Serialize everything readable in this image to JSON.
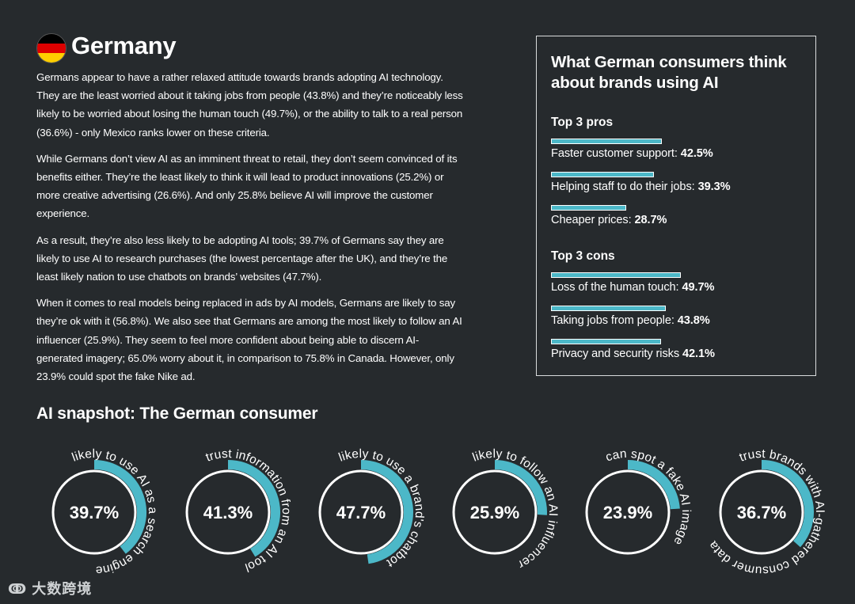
{
  "header": {
    "title": "Germany",
    "flag_colors": [
      "#000000",
      "#dd0000",
      "#ffce00"
    ]
  },
  "intro": {
    "paragraphs": [
      "Germans appear to have a rather relaxed attitude towards brands adopting AI technology. They are the least worried about it taking jobs from people (43.8%) and they’re noticeably less likely to be worried about losing the human touch (49.7%), or the ability to talk to a real person (36.6%) - only Mexico ranks lower on these criteria.",
      "While Germans don’t view AI as an imminent threat to retail, they don’t seem convinced of its benefits either. They’re the least likely to think it will lead to product innovations (25.2%) or more creative advertising (26.6%). And only 25.8% believe AI will improve the customer experience.",
      "As a result, they’re also less likely to be adopting AI tools; 39.7% of Germans say they are likely to use AI to research purchases (the lowest percentage after the UK), and they’re the least likely nation to use chatbots on brands’ websites (47.7%).",
      "When it comes to real models being replaced in ads by AI models, Germans are likely to say they’re ok with it (56.8%). We also see that Germans are among the most likely to follow an AI influencer (25.9%). They seem to feel more confident about being able to discern AI-generated imagery; 65.0% worry about it, in comparison to 75.8% in Canada. However, only 23.9% could spot the fake Nike ad."
    ]
  },
  "sidebar": {
    "title": "What German consumers think about brands using AI",
    "pros_heading": "Top 3 pros",
    "pros": [
      {
        "label": "Faster customer support:",
        "value": "42.5%",
        "pct": 42.5
      },
      {
        "label": "Helping staff to do their jobs:",
        "value": "39.3%",
        "pct": 39.3
      },
      {
        "label": "Cheaper prices:",
        "value": "28.7%",
        "pct": 28.7
      }
    ],
    "cons_heading": "Top 3 cons",
    "cons": [
      {
        "label": "Loss of the human touch:",
        "value": "49.7%",
        "pct": 49.7
      },
      {
        "label": "Taking jobs from people:",
        "value": "43.8%",
        "pct": 43.8
      },
      {
        "label": "Privacy and security risks",
        "value": "42.1%",
        "pct": 42.1
      }
    ],
    "bar_color": "#4cb8c8"
  },
  "snapshot": {
    "title": "AI snapshot: The German consumer",
    "accent": "#4cb8c8",
    "items": [
      {
        "value": "39.7%",
        "pct": 39.7,
        "caption": "likely to use AI as a search engine"
      },
      {
        "value": "41.3%",
        "pct": 41.3,
        "caption": "trust information from an AI tool"
      },
      {
        "value": "47.7%",
        "pct": 47.7,
        "caption": "likely to use a brand's chatbot"
      },
      {
        "value": "25.9%",
        "pct": 25.9,
        "caption": "likely to follow an AI influencer"
      },
      {
        "value": "23.9%",
        "pct": 23.9,
        "caption": "can spot a fake AI image"
      },
      {
        "value": "36.7%",
        "pct": 36.7,
        "caption": "trust brands with AI-gathered consumer data"
      }
    ]
  },
  "footer": {
    "logo_text": "大数跨境",
    "logo_icon": "logo-mark-icon"
  }
}
